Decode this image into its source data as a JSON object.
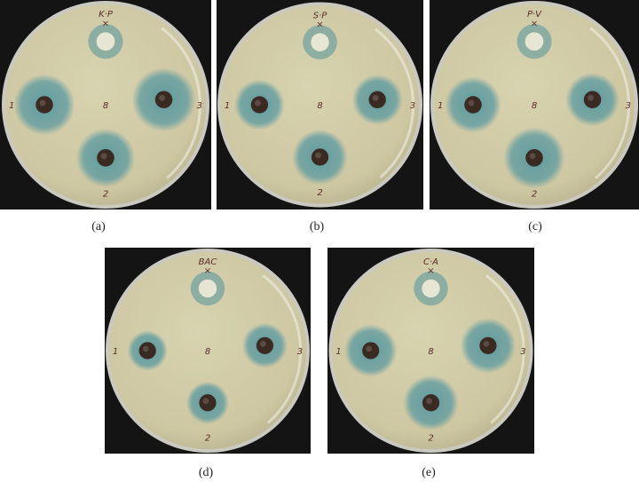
{
  "panels": [
    {
      "caption": "(a)",
      "top_label": "K·P",
      "center_mark": "8",
      "well_labels": [
        "1",
        "2",
        "3"
      ]
    },
    {
      "caption": "(b)",
      "top_label": "S·P",
      "center_mark": "8",
      "well_labels": [
        "1",
        "2",
        "3"
      ]
    },
    {
      "caption": "(c)",
      "top_label": "P·V",
      "center_mark": "8",
      "well_labels": [
        "1",
        "2",
        "3"
      ]
    },
    {
      "caption": "(d)",
      "top_label": "BAC",
      "center_mark": "8",
      "well_labels": [
        "1",
        "2",
        "3"
      ]
    },
    {
      "caption": "(e)",
      "top_label": "C·A",
      "center_mark": "8",
      "well_labels": [
        "1",
        "2",
        "3"
      ]
    }
  ],
  "colors": {
    "agar": "#cdc7a2",
    "inhibition_zone": "#5b9aa0",
    "well": "#3a2a22",
    "background": "#141414"
  }
}
